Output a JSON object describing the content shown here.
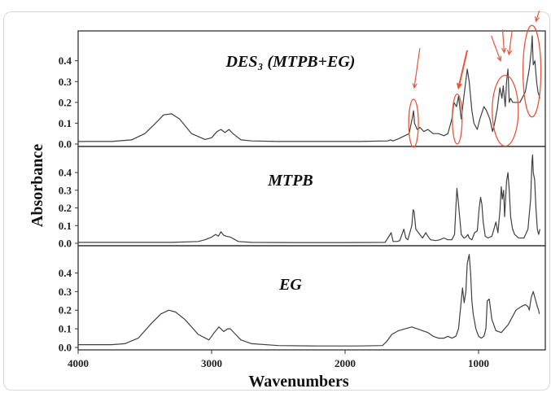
{
  "chart_data": {
    "type": "line",
    "xlabel": "Wavenumbers",
    "ylabel": "Absorbance",
    "xlim": [
      4000,
      500
    ],
    "x_ticks": [
      "4000",
      "3000",
      "2000",
      "1000"
    ],
    "y_ticks": [
      "0.0",
      "0.1",
      "0.2",
      "0.3",
      "0.4"
    ],
    "grid": false,
    "colors": {
      "line": "#404040",
      "frame": "#333333",
      "annotation": "#e8553a"
    },
    "panels": [
      {
        "title": "DES₃ (MTPB+EG)",
        "ylim": [
          0,
          0.52
        ],
        "series": [
          {
            "x": [
              4000,
              3750,
              3600,
              3500,
              3420,
              3360,
              3300,
              3240,
              3150,
              3050,
              3000,
              2960,
              2930,
              2900,
              2870,
              2840,
              2780,
              2700,
              2500,
              2200,
              1900,
              1680,
              1660,
              1640,
              1600,
              1520,
              1495,
              1487,
              1480,
              1460,
              1440,
              1410,
              1380,
              1340,
              1300,
              1260,
              1230,
              1200,
              1185,
              1165,
              1150,
              1130,
              1115,
              1100,
              1085,
              1070,
              1050,
              1035,
              1010,
              990,
              960,
              940,
              915,
              895,
              880,
              860,
              840,
              825,
              815,
              800,
              790,
              780,
              770,
              760,
              745,
              720,
              690,
              650,
              620,
              605,
              598,
              590,
              578,
              565,
              555,
              540
            ],
            "y": [
              0.012,
              0.012,
              0.02,
              0.05,
              0.1,
              0.14,
              0.145,
              0.12,
              0.05,
              0.022,
              0.03,
              0.06,
              0.07,
              0.055,
              0.07,
              0.05,
              0.02,
              0.015,
              0.012,
              0.012,
              0.012,
              0.015,
              0.02,
              0.015,
              0.025,
              0.05,
              0.13,
              0.16,
              0.1,
              0.07,
              0.08,
              0.06,
              0.07,
              0.05,
              0.05,
              0.04,
              0.05,
              0.12,
              0.2,
              0.18,
              0.23,
              0.12,
              0.2,
              0.28,
              0.36,
              0.3,
              0.16,
              0.1,
              0.07,
              0.12,
              0.18,
              0.16,
              0.12,
              0.06,
              0.1,
              0.17,
              0.27,
              0.22,
              0.28,
              0.18,
              0.3,
              0.36,
              0.2,
              0.22,
              0.2,
              0.2,
              0.2,
              0.25,
              0.36,
              0.45,
              0.52,
              0.38,
              0.4,
              0.3,
              0.25,
              0.22
            ]
          }
        ]
      },
      {
        "title": "MTPB",
        "ylim": [
          0,
          0.52
        ],
        "series": [
          {
            "x": [
              4000,
              3300,
              3100,
              3050,
              3000,
              2970,
              2950,
              2930,
              2910,
              2890,
              2860,
              2800,
              2700,
              2400,
              2000,
              1700,
              1655,
              1640,
              1610,
              1590,
              1560,
              1545,
              1530,
              1500,
              1490,
              1483,
              1470,
              1440,
              1420,
              1395,
              1380,
              1360,
              1320,
              1290,
              1260,
              1230,
              1200,
              1180,
              1170,
              1162,
              1150,
              1130,
              1110,
              1095,
              1080,
              1070,
              1050,
              1030,
              1010,
              995,
              985,
              975,
              965,
              950,
              930,
              900,
              885,
              870,
              855,
              840,
              830,
              822,
              812,
              805,
              790,
              780,
              770,
              760,
              745,
              730,
              700,
              660,
              630,
              610,
              600,
              595,
              590,
              580,
              570,
              560,
              550,
              540
            ],
            "y": [
              0.005,
              0.005,
              0.01,
              0.02,
              0.035,
              0.05,
              0.04,
              0.065,
              0.045,
              0.04,
              0.035,
              0.01,
              0.005,
              0.004,
              0.004,
              0.005,
              0.06,
              0.01,
              0.01,
              0.015,
              0.08,
              0.03,
              0.02,
              0.1,
              0.19,
              0.18,
              0.08,
              0.05,
              0.03,
              0.06,
              0.04,
              0.02,
              0.015,
              0.02,
              0.03,
              0.02,
              0.02,
              0.05,
              0.2,
              0.31,
              0.22,
              0.05,
              0.03,
              0.035,
              0.05,
              0.03,
              0.02,
              0.06,
              0.07,
              0.2,
              0.26,
              0.22,
              0.12,
              0.04,
              0.03,
              0.04,
              0.08,
              0.12,
              0.06,
              0.18,
              0.32,
              0.25,
              0.3,
              0.15,
              0.35,
              0.4,
              0.3,
              0.15,
              0.08,
              0.05,
              0.03,
              0.03,
              0.08,
              0.25,
              0.46,
              0.5,
              0.4,
              0.36,
              0.2,
              0.08,
              0.05,
              0.08
            ]
          }
        ]
      },
      {
        "title": "EG",
        "ylim": [
          0,
          0.52
        ],
        "series": [
          {
            "x": [
              4000,
              3750,
              3650,
              3550,
              3450,
              3380,
              3320,
              3270,
              3200,
              3100,
              3020,
              2980,
              2945,
              2910,
              2880,
              2860,
              2820,
              2780,
              2700,
              2500,
              2200,
              1900,
              1720,
              1690,
              1650,
              1600,
              1550,
              1500,
              1460,
              1420,
              1380,
              1340,
              1300,
              1260,
              1230,
              1200,
              1170,
              1150,
              1130,
              1120,
              1108,
              1095,
              1085,
              1070,
              1060,
              1050,
              1040,
              1020,
              1000,
              980,
              960,
              945,
              935,
              920,
              900,
              870,
              830,
              780,
              720,
              680,
              650,
              630,
              620,
              605,
              590,
              575,
              560,
              550,
              545
            ],
            "y": [
              0.015,
              0.015,
              0.02,
              0.05,
              0.13,
              0.18,
              0.2,
              0.19,
              0.15,
              0.07,
              0.04,
              0.08,
              0.11,
              0.085,
              0.1,
              0.1,
              0.07,
              0.04,
              0.02,
              0.01,
              0.008,
              0.008,
              0.01,
              0.03,
              0.07,
              0.09,
              0.1,
              0.11,
              0.1,
              0.09,
              0.08,
              0.06,
              0.05,
              0.05,
              0.06,
              0.05,
              0.06,
              0.1,
              0.25,
              0.32,
              0.24,
              0.3,
              0.45,
              0.5,
              0.4,
              0.25,
              0.18,
              0.1,
              0.06,
              0.05,
              0.06,
              0.1,
              0.25,
              0.26,
              0.15,
              0.09,
              0.08,
              0.12,
              0.2,
              0.22,
              0.23,
              0.22,
              0.2,
              0.27,
              0.3,
              0.26,
              0.22,
              0.2,
              0.18
            ]
          }
        ]
      }
    ]
  }
}
